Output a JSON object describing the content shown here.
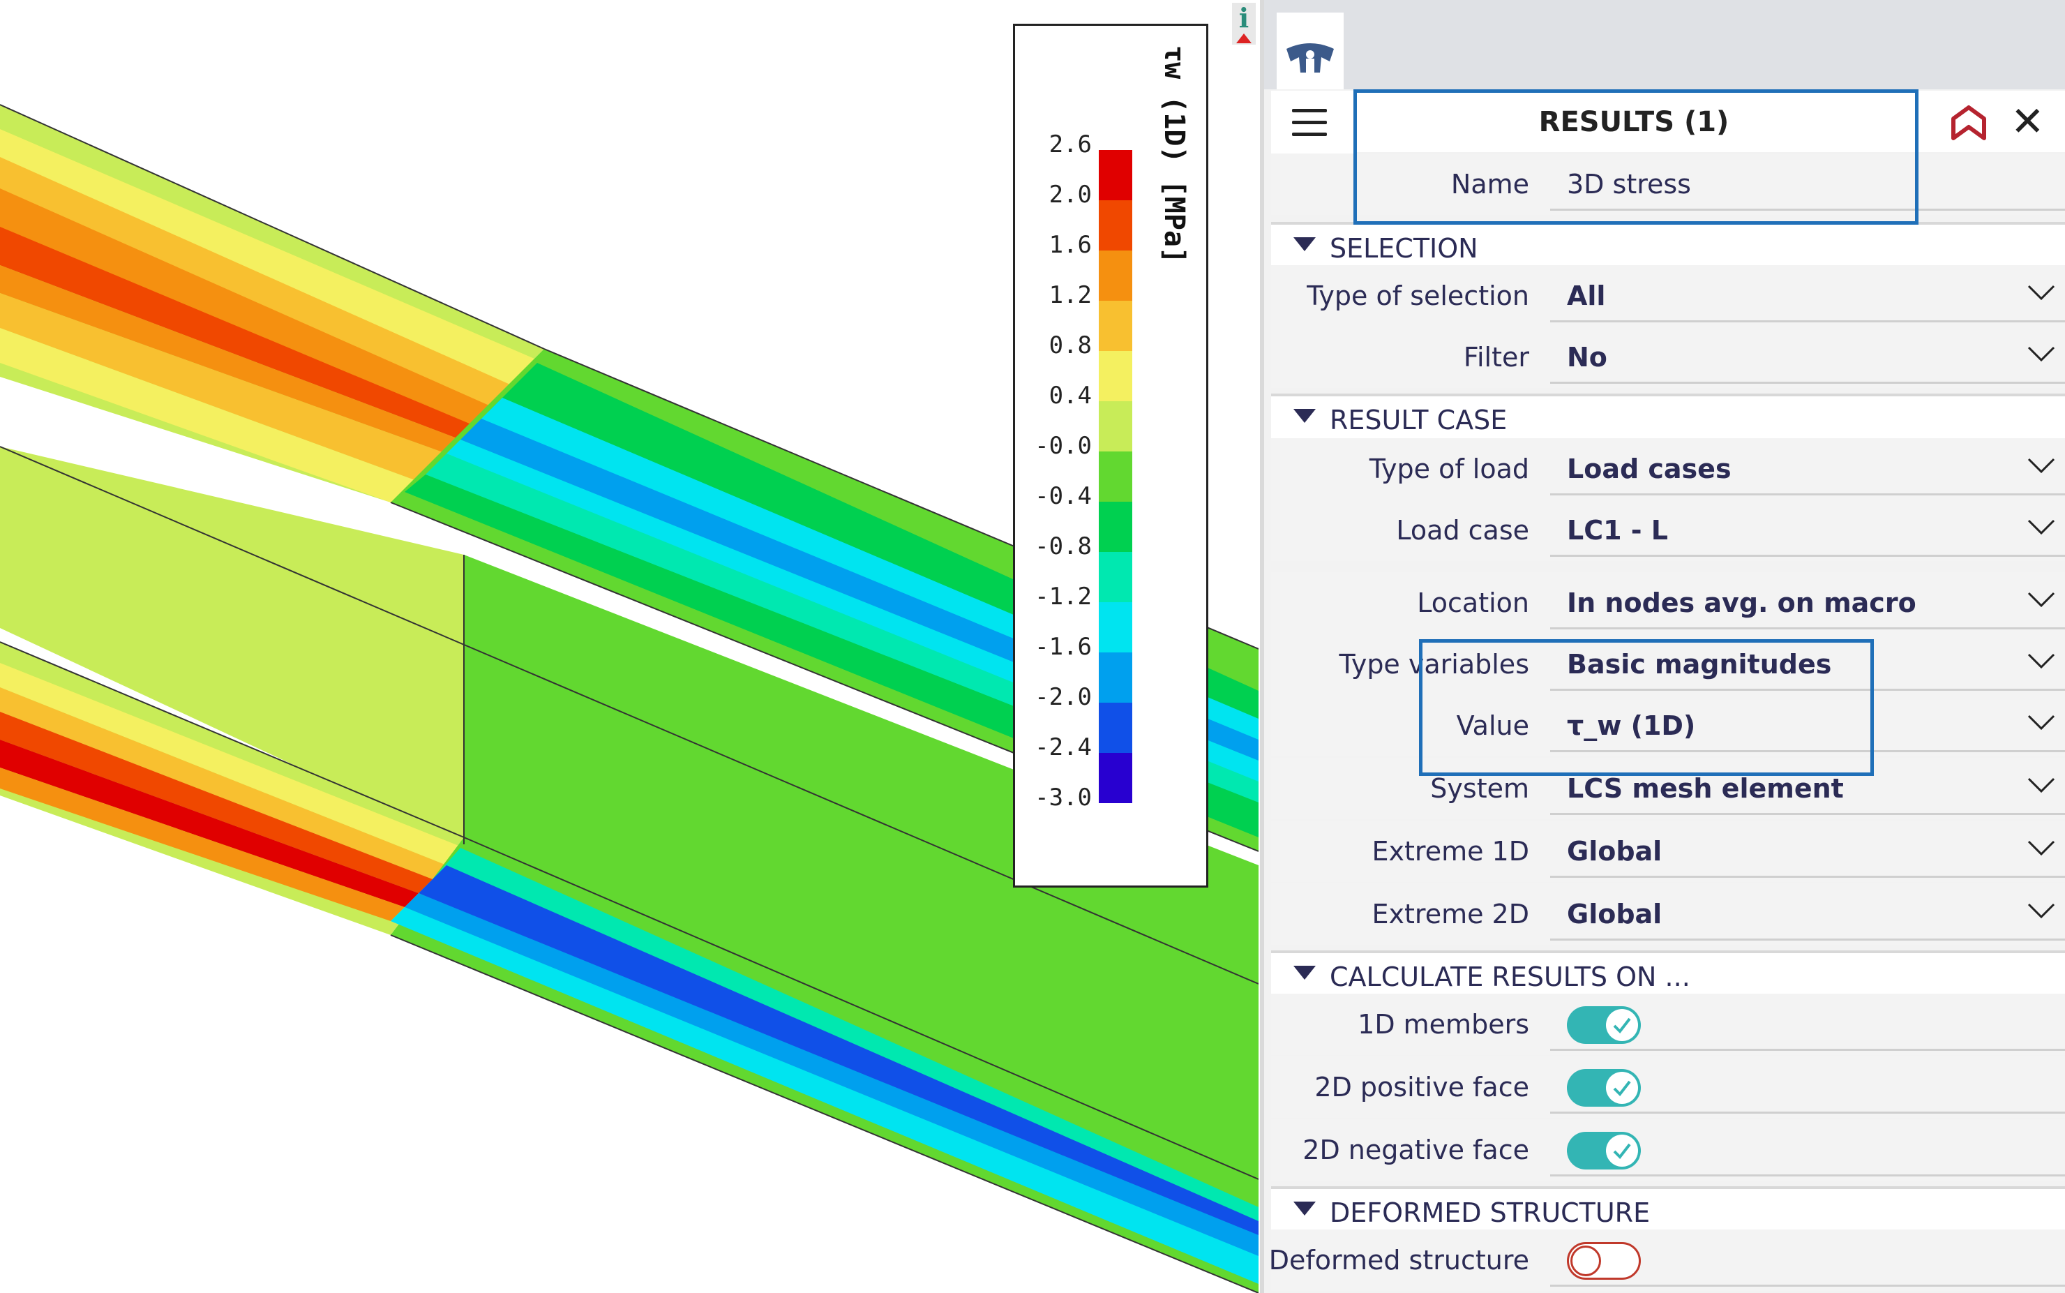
{
  "legend": {
    "title": "τw (1D) [MPa]",
    "ticks": [
      "2.6",
      "2.0",
      "1.6",
      "1.2",
      "0.8",
      "0.4",
      "-0.0",
      "-0.4",
      "-0.8",
      "-1.2",
      "-1.6",
      "-2.0",
      "-2.4",
      "-3.0"
    ],
    "colors": [
      "#e00000",
      "#f04800",
      "#f59010",
      "#f8c030",
      "#f4f060",
      "#c8ec58",
      "#62d830",
      "#00d050",
      "#00e8b0",
      "#00e4f0",
      "#00a0ee",
      "#1050e8",
      "#2800d0"
    ]
  },
  "panel": {
    "title": "RESULTS (1)",
    "name_label": "Name",
    "name_value": "3D stress",
    "sections": {
      "selection": "SELECTION",
      "result_case": "RESULT CASE",
      "calculate": "CALCULATE RESULTS ON ...",
      "deformed": "DEFORMED STRUCTURE"
    },
    "fields": {
      "type_of_selection": {
        "label": "Type of selection",
        "value": "All"
      },
      "filter": {
        "label": "Filter",
        "value": "No"
      },
      "type_of_load": {
        "label": "Type of load",
        "value": "Load cases"
      },
      "load_case": {
        "label": "Load case",
        "value": "LC1 - L"
      },
      "location": {
        "label": "Location",
        "value": "In nodes avg. on macro"
      },
      "type_variables": {
        "label": "Type variables",
        "value": "Basic magnitudes"
      },
      "value": {
        "label": "Value",
        "value": "τ_w (1D)"
      },
      "system": {
        "label": "System",
        "value": "LCS mesh element"
      },
      "extreme_1d": {
        "label": "Extreme 1D",
        "value": "Global"
      },
      "extreme_2d": {
        "label": "Extreme 2D",
        "value": "Global"
      }
    },
    "toggles": {
      "members_1d": {
        "label": "1D members",
        "on": true
      },
      "positive_face": {
        "label": "2D positive face",
        "on": true
      },
      "negative_face": {
        "label": "2D negative face",
        "on": true
      },
      "deformed_structure": {
        "label": "Deformed structure",
        "on": false
      }
    },
    "colors": {
      "accent": "#33b5b4",
      "highlight": "#1f6fb8",
      "text": "#2b2b55"
    }
  }
}
